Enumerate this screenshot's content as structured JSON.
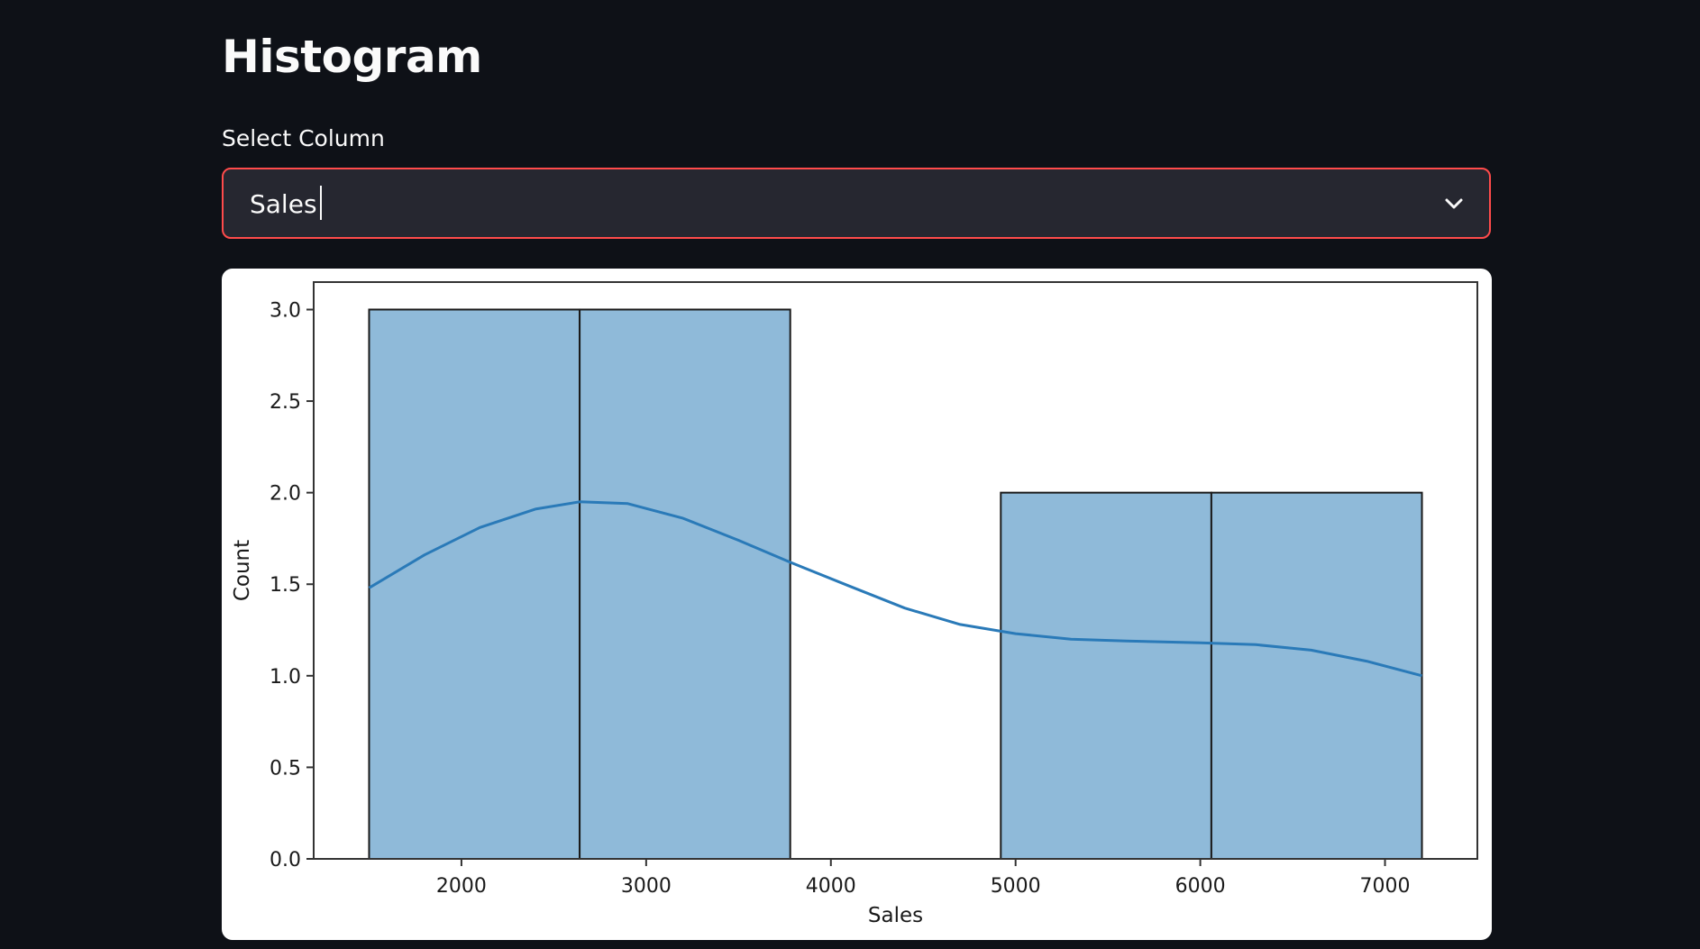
{
  "page": {
    "title": "Histogram"
  },
  "select": {
    "label": "Select Column",
    "value": "Sales"
  },
  "chart_data": {
    "type": "bar",
    "xlabel": "Sales",
    "ylabel": "Count",
    "xlim": [
      1200,
      7500
    ],
    "ylim": [
      0,
      3.15
    ],
    "xticks": [
      2000,
      3000,
      4000,
      5000,
      6000,
      7000
    ],
    "yticks": [
      0.0,
      0.5,
      1.0,
      1.5,
      2.0,
      2.5,
      3.0
    ],
    "bins": [
      {
        "x0": 1500,
        "x1": 2640,
        "count": 3
      },
      {
        "x0": 2640,
        "x1": 3780,
        "count": 3
      },
      {
        "x0": 3780,
        "x1": 4920,
        "count": 0
      },
      {
        "x0": 4920,
        "x1": 6060,
        "count": 2
      },
      {
        "x0": 6060,
        "x1": 7200,
        "count": 2
      }
    ],
    "kde": [
      [
        1500,
        1.48
      ],
      [
        1800,
        1.66
      ],
      [
        2100,
        1.81
      ],
      [
        2400,
        1.91
      ],
      [
        2640,
        1.95
      ],
      [
        2900,
        1.94
      ],
      [
        3200,
        1.86
      ],
      [
        3500,
        1.74
      ],
      [
        3780,
        1.62
      ],
      [
        4100,
        1.49
      ],
      [
        4400,
        1.37
      ],
      [
        4700,
        1.28
      ],
      [
        5000,
        1.23
      ],
      [
        5300,
        1.2
      ],
      [
        5600,
        1.19
      ],
      [
        6000,
        1.18
      ],
      [
        6300,
        1.17
      ],
      [
        6600,
        1.14
      ],
      [
        6900,
        1.08
      ],
      [
        7200,
        1.0
      ]
    ],
    "colors": {
      "bar_fill": "#8fbad9",
      "bar_edge": "#1a1a1a",
      "kde_line": "#2a7ab8",
      "axis": "#333333"
    }
  }
}
